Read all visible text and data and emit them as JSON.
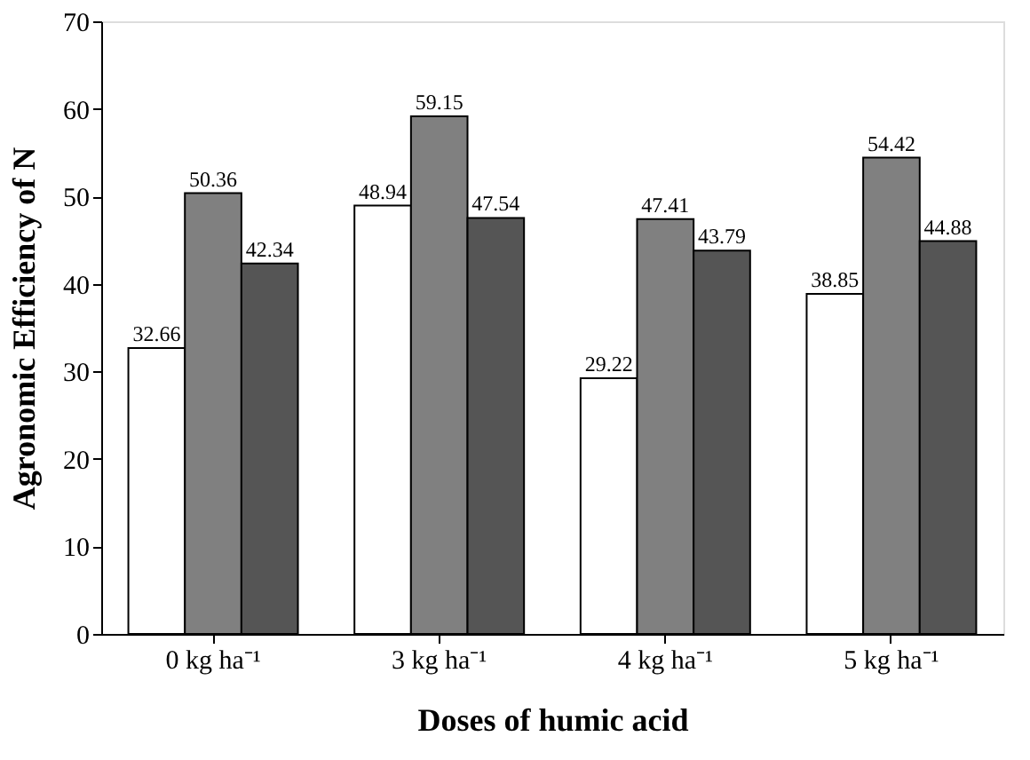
{
  "chart_data": {
    "type": "bar",
    "xlabel": "Doses of  humic acid",
    "ylabel": "Agronomic Efficiency of N",
    "categories": [
      "0 kg ha⁻¹",
      "3 kg ha⁻¹",
      "4 kg ha⁻¹",
      "5 kg ha⁻¹"
    ],
    "series": [
      {
        "color": "#ffffff",
        "values": [
          32.66,
          48.94,
          29.22,
          38.85
        ]
      },
      {
        "color": "#808080",
        "values": [
          50.36,
          59.15,
          47.41,
          54.42
        ]
      },
      {
        "color": "#555555",
        "values": [
          42.34,
          47.54,
          43.79,
          44.88
        ]
      }
    ],
    "ylim": [
      0,
      70
    ],
    "yticks": [
      0,
      10,
      20,
      30,
      40,
      50,
      60,
      70
    ],
    "data_labels": true,
    "grid": false,
    "legend": false
  }
}
